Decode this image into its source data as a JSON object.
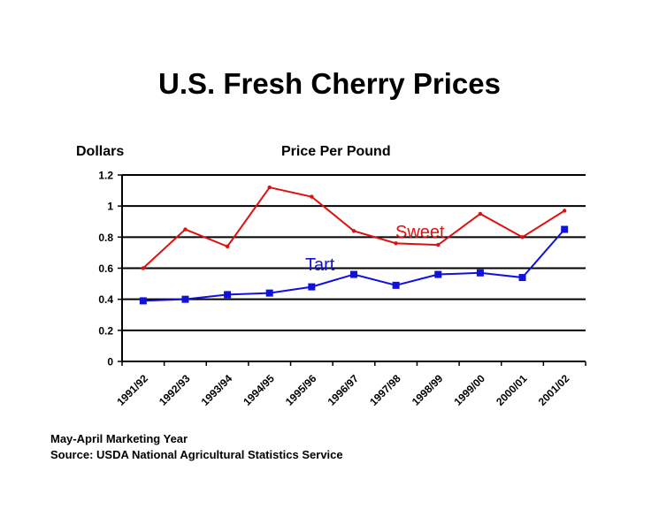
{
  "title": "U.S. Fresh Cherry Prices",
  "footnotes": {
    "line1": "May-April Marketing Year",
    "line2": "Source: USDA National Agricultural Statistics Service"
  },
  "chart_data": {
    "type": "line",
    "title": "Price Per Pound",
    "ylabel": "Dollars",
    "xlabel": "",
    "ylim": [
      0,
      1.2
    ],
    "yticks": [
      0,
      0.2,
      0.4,
      0.6,
      0.8,
      1,
      1.2
    ],
    "ytick_labels": [
      "0",
      "0.2",
      "0.4",
      "0.6",
      "0.8",
      "1",
      "1.2"
    ],
    "categories": [
      "1991/92",
      "1992/93",
      "1993/94",
      "1994/95",
      "1995/96",
      "1996/97",
      "1997/98",
      "1998/99",
      "1999/00",
      "2000/01",
      "2001/02"
    ],
    "series": [
      {
        "name": "Sweet",
        "color": "#dd1111",
        "marker": "dot",
        "values": [
          0.6,
          0.85,
          0.74,
          1.12,
          1.06,
          0.84,
          0.76,
          0.75,
          0.95,
          0.8,
          0.97
        ]
      },
      {
        "name": "Tart",
        "color": "#1111dd",
        "marker": "square",
        "values": [
          0.39,
          0.4,
          0.43,
          0.44,
          0.48,
          0.56,
          0.49,
          0.56,
          0.57,
          0.54,
          0.85
        ]
      }
    ],
    "grid": true
  }
}
